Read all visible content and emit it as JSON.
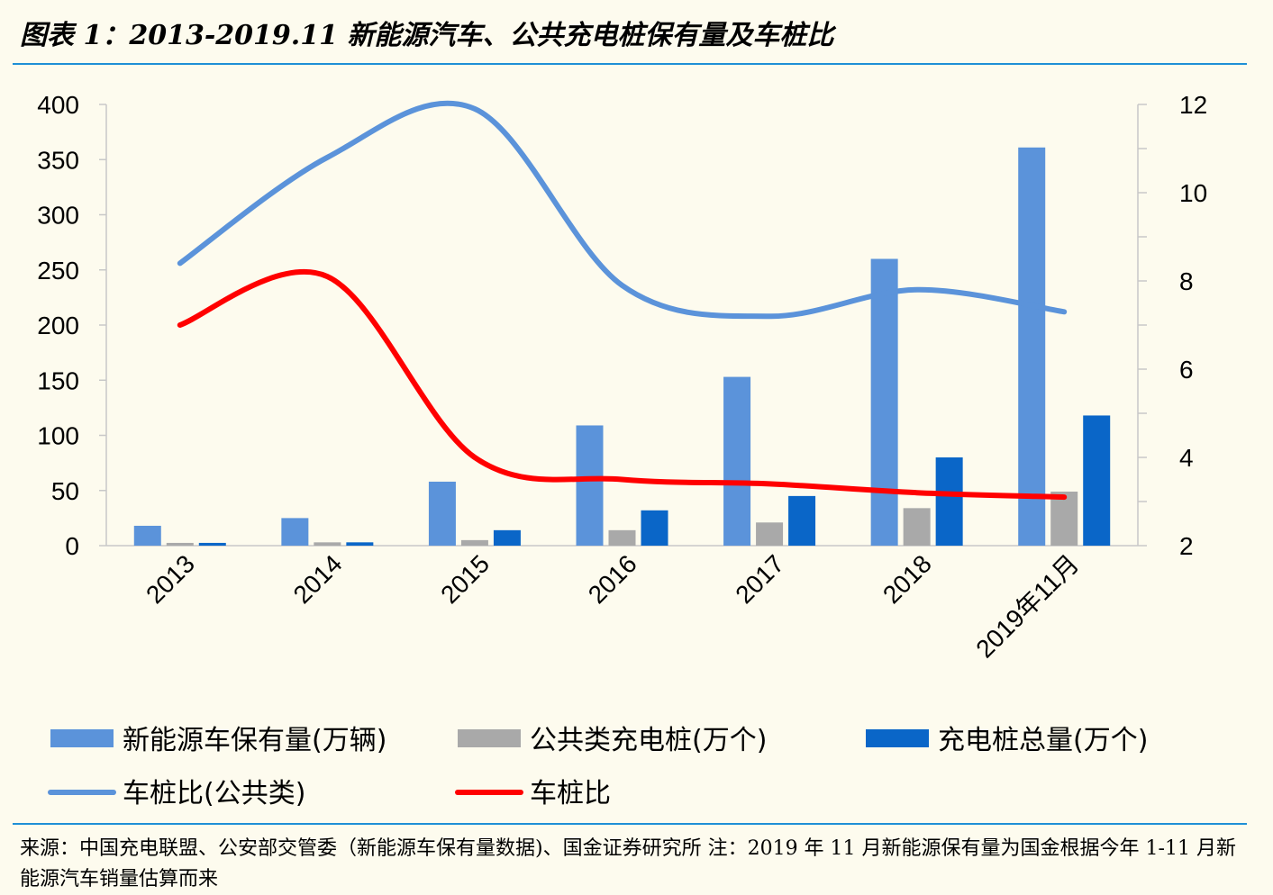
{
  "title": "图表 1：2013-2019.11 新能源汽车、公共充电桩保有量及车桩比",
  "source_note": "来源：中国充电联盟、公安部交管委（新能源车保有量数据)、国金证券研究所  注：2019 年 11 月新能源保有量为国金根据今年 1-11 月新能源汽车销量估算而来",
  "colors": {
    "background": "#fdfbee",
    "rule": "#1f8fd6",
    "ev_stock": "#5b93da",
    "public_chargers": "#a9a9a9",
    "total_chargers": "#0a66c8",
    "ratio_public": "#5b93da",
    "ratio_total": "#ff0000"
  },
  "chart_data": {
    "type": "bar",
    "title": "2013-2019.11 新能源汽车、公共充电桩保有量及车桩比",
    "categories": [
      "2013",
      "2014",
      "2015",
      "2016",
      "2017",
      "2018",
      "2019年11月"
    ],
    "left_axis": {
      "ylim": [
        0,
        400
      ],
      "ticks": [
        0,
        50,
        100,
        150,
        200,
        250,
        300,
        350,
        400
      ]
    },
    "right_axis": {
      "ylim": [
        2,
        12
      ],
      "ticks": [
        2,
        4,
        6,
        8,
        10,
        12
      ]
    },
    "series": [
      {
        "name": "新能源车保有量(万辆)",
        "kind": "bar",
        "axis": "left",
        "color": "#5b93da",
        "values": [
          18,
          25,
          58,
          109,
          153,
          260,
          361
        ]
      },
      {
        "name": "公共类充电桩(万个)",
        "kind": "bar",
        "axis": "left",
        "color": "#a9a9a9",
        "values": [
          2.5,
          3,
          5,
          14,
          21,
          34,
          49
        ]
      },
      {
        "name": "充电桩总量(万个)",
        "kind": "bar",
        "axis": "left",
        "color": "#0a66c8",
        "values": [
          2.5,
          3,
          14,
          32,
          45,
          80,
          118
        ]
      },
      {
        "name": "车桩比(公共类)",
        "kind": "line",
        "axis": "right",
        "color": "#5b93da",
        "values": [
          8.4,
          10.8,
          11.9,
          7.9,
          7.2,
          7.8,
          7.3
        ]
      },
      {
        "name": "车桩比",
        "kind": "line",
        "axis": "right",
        "color": "#ff0000",
        "values": [
          7.0,
          8.1,
          4.0,
          3.5,
          3.4,
          3.2,
          3.1
        ]
      }
    ],
    "legend_position": "bottom"
  }
}
